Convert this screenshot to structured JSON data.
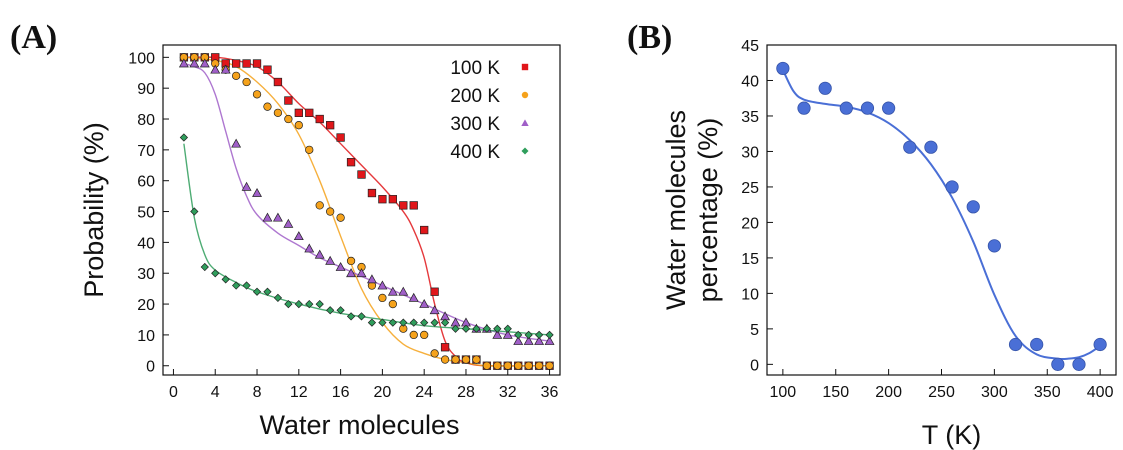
{
  "chart_data": [
    {
      "type": "scatter",
      "panel_label": "(A)",
      "xlabel": "Water molecules",
      "ylabel": "Probability (%)",
      "xlim": [
        -1,
        37
      ],
      "ylim": [
        -3,
        104
      ],
      "x_ticks": [
        0,
        4,
        8,
        12,
        16,
        20,
        24,
        28,
        32,
        36
      ],
      "y_ticks": [
        0,
        10,
        20,
        30,
        40,
        50,
        60,
        70,
        80,
        90,
        100
      ],
      "grid": false,
      "legend_position": "top-right",
      "series": [
        {
          "name": "100 K",
          "marker": "square",
          "color": "#e0161a",
          "x": [
            1,
            2,
            3,
            4,
            5,
            6,
            7,
            8,
            9,
            10,
            11,
            12,
            13,
            14,
            15,
            16,
            17,
            18,
            19,
            20,
            21,
            22,
            23,
            24,
            25,
            26,
            27,
            28,
            29,
            30,
            31,
            32,
            33,
            34,
            35,
            36
          ],
          "y": [
            100,
            100,
            100,
            100,
            98,
            98,
            98,
            98,
            96,
            92,
            86,
            82,
            82,
            80,
            78,
            74,
            66,
            62,
            56,
            54,
            54,
            52,
            52,
            44,
            24,
            6,
            2,
            2,
            2,
            0,
            0,
            0,
            0,
            0,
            0,
            0
          ],
          "fit_x": [
            1,
            4,
            6,
            8,
            10,
            12,
            14,
            16,
            18,
            20,
            22,
            23,
            24,
            25,
            26,
            27,
            28,
            30,
            36
          ],
          "fit_y": [
            100,
            100,
            99,
            97,
            92,
            85,
            79,
            72,
            65,
            58,
            50,
            44,
            35,
            20,
            8,
            3,
            1,
            0,
            0
          ]
        },
        {
          "name": "200 K",
          "marker": "circle",
          "color": "#f5a21b",
          "x": [
            1,
            2,
            3,
            4,
            5,
            6,
            7,
            8,
            9,
            10,
            11,
            12,
            13,
            14,
            15,
            16,
            17,
            18,
            19,
            20,
            21,
            22,
            23,
            24,
            25,
            26,
            27,
            28,
            29,
            30,
            31,
            32,
            33,
            34,
            35,
            36
          ],
          "y": [
            100,
            100,
            100,
            98,
            96,
            94,
            92,
            88,
            84,
            82,
            80,
            78,
            70,
            52,
            50,
            48,
            34,
            32,
            26,
            22,
            20,
            12,
            10,
            10,
            4,
            2,
            2,
            2,
            2,
            0,
            0,
            0,
            0,
            0,
            0,
            0
          ],
          "fit_x": [
            1,
            4,
            6,
            8,
            10,
            12,
            14,
            16,
            18,
            20,
            22,
            24,
            26,
            28,
            30,
            36
          ],
          "fit_y": [
            100,
            99,
            97,
            92,
            85,
            75,
            60,
            42,
            25,
            14,
            7,
            4,
            2,
            1,
            0,
            0
          ]
        },
        {
          "name": "300 K",
          "marker": "triangle",
          "color": "#a05fc8",
          "x": [
            1,
            2,
            3,
            4,
            5,
            6,
            7,
            8,
            9,
            10,
            11,
            12,
            13,
            14,
            15,
            16,
            17,
            18,
            19,
            20,
            21,
            22,
            23,
            24,
            25,
            26,
            27,
            28,
            29,
            30,
            31,
            32,
            33,
            34,
            35,
            36
          ],
          "y": [
            98,
            98,
            98,
            96,
            96,
            72,
            58,
            56,
            48,
            48,
            46,
            42,
            38,
            36,
            34,
            32,
            30,
            30,
            28,
            26,
            24,
            24,
            22,
            20,
            18,
            16,
            14,
            14,
            12,
            12,
            10,
            10,
            8,
            8,
            8,
            8
          ],
          "fit_x": [
            1,
            2,
            3,
            4,
            5,
            6,
            7,
            8,
            10,
            12,
            14,
            16,
            18,
            20,
            24,
            28,
            32,
            36
          ],
          "fit_y": [
            98,
            97,
            95,
            88,
            76,
            64,
            55,
            49,
            43,
            39,
            35,
            32,
            29,
            26,
            20,
            14,
            10,
            8
          ]
        },
        {
          "name": "400 K",
          "marker": "diamond",
          "color": "#2f9e5c",
          "x": [
            1,
            2,
            3,
            4,
            5,
            6,
            7,
            8,
            9,
            10,
            11,
            12,
            13,
            14,
            15,
            16,
            17,
            18,
            19,
            20,
            21,
            22,
            23,
            24,
            25,
            26,
            27,
            28,
            29,
            30,
            31,
            32,
            33,
            34,
            35,
            36
          ],
          "y": [
            74,
            50,
            32,
            30,
            28,
            26,
            26,
            24,
            24,
            22,
            20,
            20,
            20,
            20,
            18,
            18,
            16,
            16,
            14,
            14,
            14,
            14,
            14,
            14,
            14,
            14,
            12,
            12,
            12,
            12,
            12,
            12,
            10,
            10,
            10,
            10
          ],
          "fit_x": [
            1,
            2,
            3,
            4,
            6,
            8,
            12,
            16,
            20,
            24,
            28,
            32,
            36
          ],
          "fit_y": [
            72,
            48,
            36,
            31,
            27,
            24,
            20,
            17,
            15,
            13,
            12,
            11,
            10
          ]
        }
      ]
    },
    {
      "type": "scatter",
      "panel_label": "(B)",
      "xlabel": "T (K)",
      "ylabel": "Water molecules percentage (%)",
      "ylabel_lines": [
        "Water molecules",
        "percentage (%)"
      ],
      "xlim": [
        85,
        415
      ],
      "ylim": [
        -1.5,
        45
      ],
      "x_ticks": [
        100,
        150,
        200,
        250,
        300,
        350,
        400
      ],
      "y_ticks": [
        0,
        5,
        10,
        15,
        20,
        25,
        30,
        35,
        40,
        45
      ],
      "grid": false,
      "series": [
        {
          "marker": "circle",
          "color": "#4a6fd6",
          "x": [
            100,
            120,
            140,
            160,
            180,
            200,
            220,
            240,
            260,
            280,
            300,
            320,
            340,
            360,
            380,
            400
          ],
          "y": [
            41.7,
            36.1,
            38.9,
            36.1,
            36.1,
            36.1,
            30.6,
            30.6,
            25.0,
            22.2,
            16.7,
            2.8,
            2.8,
            0,
            0,
            2.8
          ],
          "fit_x": [
            100,
            110,
            120,
            140,
            160,
            180,
            200,
            220,
            240,
            260,
            280,
            300,
            320,
            340,
            360,
            370,
            380,
            390,
            400
          ],
          "fit_y": [
            41.5,
            38.5,
            37.3,
            36.7,
            36.3,
            35.5,
            34.0,
            31.6,
            28.2,
            23.5,
            17.3,
            9.8,
            4.0,
            1.4,
            0.8,
            0.8,
            1.0,
            1.6,
            2.6
          ]
        }
      ]
    }
  ]
}
